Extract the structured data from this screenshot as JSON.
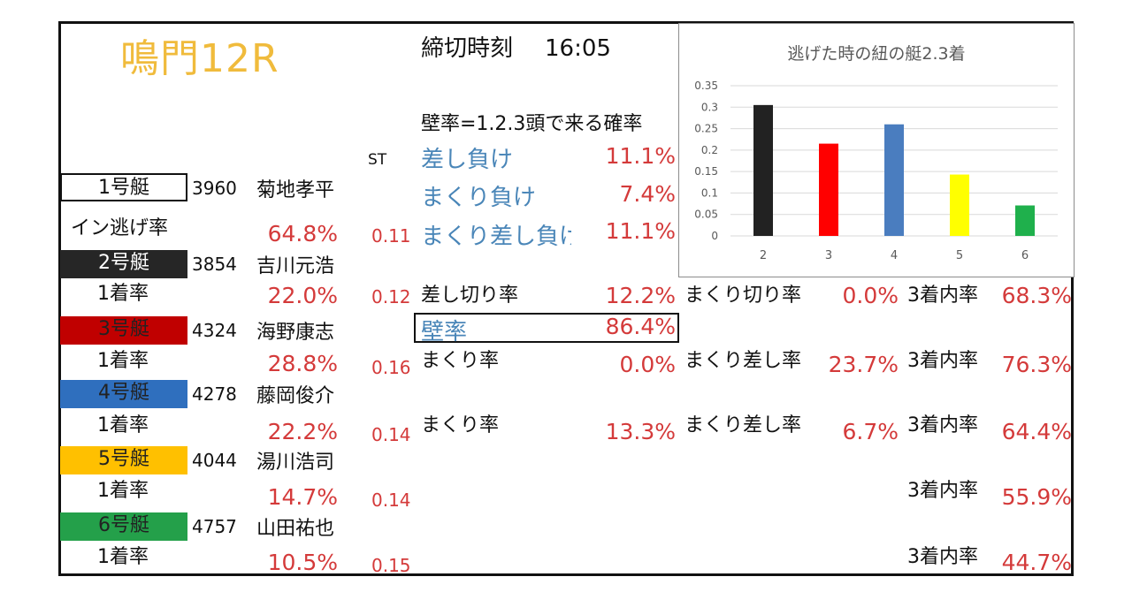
{
  "title": "鳴門12R",
  "deadline": {
    "label": "締切時刻",
    "time": "16:05"
  },
  "wall_definition": "壁率=1.2.3頭で来る確率",
  "st_label": "ST",
  "wall_stats": [
    {
      "label": "差し負け",
      "value": "11.1%"
    },
    {
      "label": "まくり負け",
      "value": "7.4%"
    },
    {
      "label": "まくり差し負け",
      "value": "11.1%"
    }
  ],
  "wall_rate": {
    "label": "壁率",
    "value": "86.4%"
  },
  "boats": [
    {
      "boat": "1号艇",
      "reg": "3960",
      "name": "菊地孝平",
      "rate_label": "イン逃げ率",
      "rate": "64.8%",
      "st": "0.11"
    },
    {
      "boat": "2号艇",
      "reg": "3854",
      "name": "吉川元浩",
      "rate_label": "1着率",
      "rate": "22.0%",
      "st": "0.12"
    },
    {
      "boat": "3号艇",
      "reg": "4324",
      "name": "海野康志",
      "rate_label": "1着率",
      "rate": "28.8%",
      "st": "0.16"
    },
    {
      "boat": "4号艇",
      "reg": "4278",
      "name": "藤岡俊介",
      "rate_label": "1着率",
      "rate": "22.2%",
      "st": "0.14"
    },
    {
      "boat": "5号艇",
      "reg": "4044",
      "name": "湯川浩司",
      "rate_label": "1着率",
      "rate": "14.7%",
      "st": "0.14"
    },
    {
      "boat": "6号艇",
      "reg": "4757",
      "name": "山田祐也",
      "rate_label": "1着率",
      "rate": "10.5%",
      "st": "0.15"
    }
  ],
  "boat2_stats": {
    "c1_label": "差し切り率",
    "c1_val": "12.2%",
    "c2_label": "まくり切り率",
    "c2_val": "0.0%",
    "c3_label": "3着内率",
    "c3_val": "68.3%"
  },
  "boat3_stats": {
    "c1_label": "まくり率",
    "c1_val": "0.0%",
    "c2_label": "まくり差し率",
    "c2_val": "23.7%",
    "c3_label": "3着内率",
    "c3_val": "76.3%"
  },
  "boat4_stats": {
    "c1_label": "まくり率",
    "c1_val": "13.3%",
    "c2_label": "まくり差し率",
    "c2_val": "6.7%",
    "c3_label": "3着内率",
    "c3_val": "64.4%"
  },
  "boat5_stats": {
    "c3_label": "3着内率",
    "c3_val": "55.9%"
  },
  "boat6_stats": {
    "c3_label": "3着内率",
    "c3_val": "44.7%"
  },
  "chart_data": {
    "type": "bar",
    "title": "逃げた時の紐の艇2.3着",
    "categories": [
      "2",
      "3",
      "4",
      "5",
      "6"
    ],
    "values": [
      0.305,
      0.215,
      0.26,
      0.143,
      0.071
    ],
    "colors": [
      "#222222",
      "#ff0000",
      "#4a7dbf",
      "#ffff00",
      "#1fb04c"
    ],
    "yticks": [
      "0",
      "0.05",
      "0.1",
      "0.15",
      "0.2",
      "0.25",
      "0.3",
      "0.35"
    ],
    "ylim": [
      0,
      0.35
    ],
    "grid": true
  }
}
